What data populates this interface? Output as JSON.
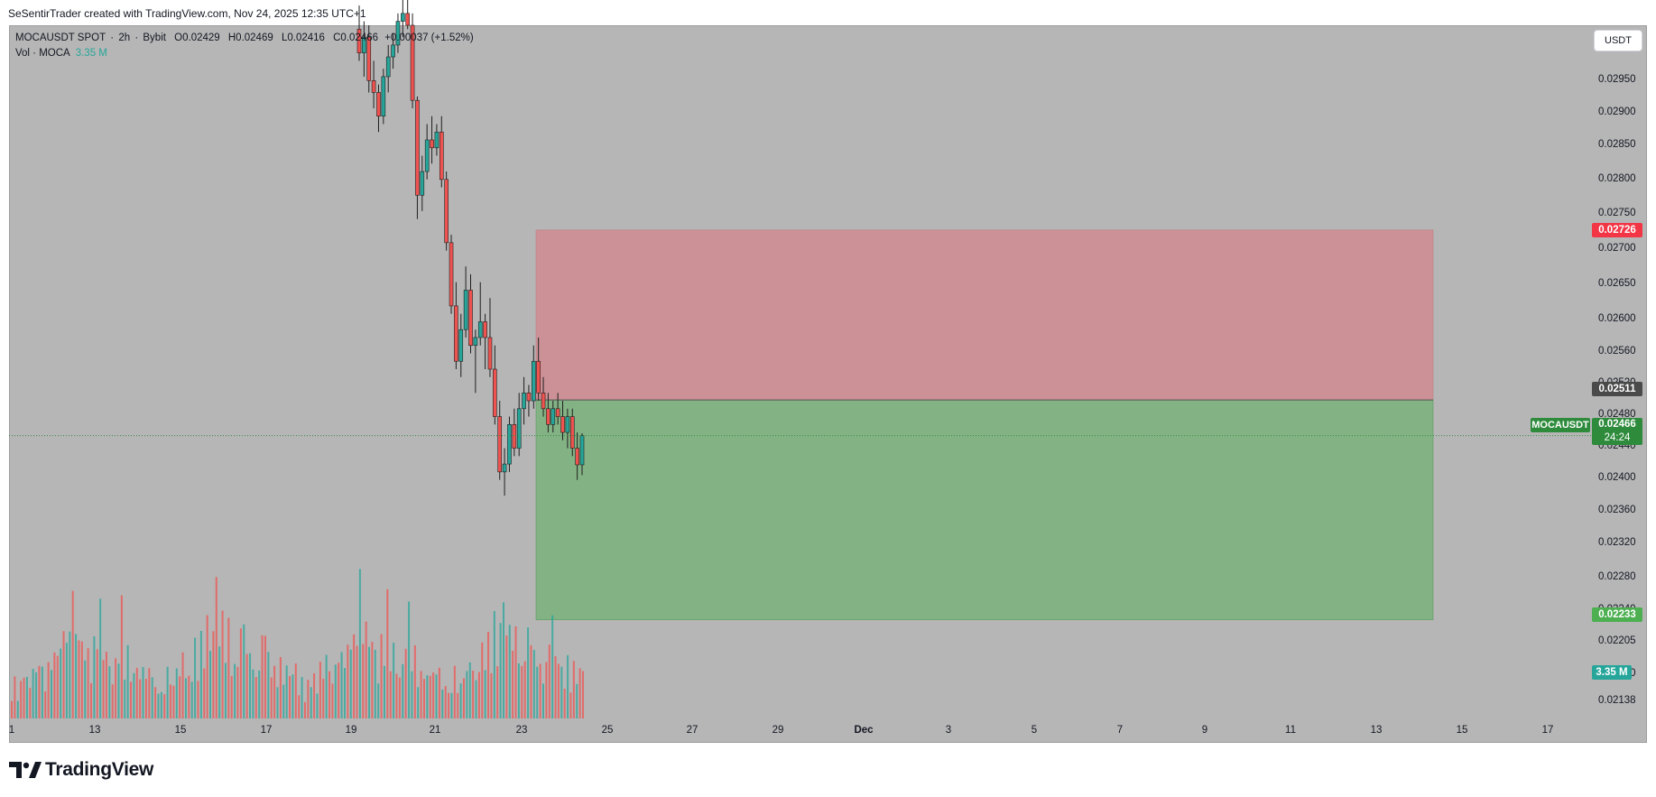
{
  "header": {
    "attribution": "SeSentirTrader created with TradingView.com, Nov 24, 2025 12:35 UTC+1"
  },
  "legend": {
    "symbol": "MOCAUSDT SPOT",
    "interval": "2h",
    "exchange": "Bybit",
    "open": "O0.02429",
    "high": "H0.02469",
    "low": "L0.02416",
    "close": "C0.02466",
    "change": "+0.00037 (+1.52%)",
    "vol_label": "Vol · MOCA",
    "vol_value": "3.35 M"
  },
  "currency_button": "USDT",
  "colors": {
    "background": "#b6b6b6",
    "up": "#26a69a",
    "down": "#ef5350",
    "stop_zone": "#d08b92",
    "target_zone": "#6db06f",
    "stop_tag": "#f23645",
    "target_tag": "#4caf50",
    "current_tag": "#2e8b3c",
    "volume_tag": "#26a69a"
  },
  "price_axis": [
    "0.02950",
    "0.02900",
    "0.02850",
    "0.02800",
    "0.02750",
    "0.02700",
    "0.02650",
    "0.02600",
    "0.02560",
    "0.02520",
    "0.02480",
    "0.02440",
    "0.02400",
    "0.02360",
    "0.02320",
    "0.02280",
    "0.02240",
    "0.02205",
    "0.02170",
    "0.02138"
  ],
  "time_axis": [
    "1",
    "13",
    "15",
    "17",
    "19",
    "21",
    "23",
    "25",
    "27",
    "29",
    "Dec",
    "3",
    "5",
    "7",
    "9",
    "11",
    "13",
    "15",
    "17"
  ],
  "tags": {
    "stop_price": "0.02726",
    "entry_price": "0.02511",
    "target_price": "0.02233",
    "symbol": "MOCAUSDT",
    "current_price": "0.02466",
    "countdown": "24:24",
    "volume": "3.35 M"
  },
  "brand": {
    "name": "TradingView",
    "logo_icon": "tradingview-logo-icon"
  },
  "chart_data": {
    "type": "candlestick",
    "price_range": [
      0.02115,
      0.02985
    ],
    "position": {
      "side": "long",
      "entry": 0.02511,
      "stop_loss": 0.02726,
      "take_profit": 0.02233
    },
    "candles": [
      [
        0.0298,
        0.0301,
        0.0294,
        0.0295
      ],
      [
        0.0295,
        0.0299,
        0.0292,
        0.0297
      ],
      [
        0.0297,
        0.02985,
        0.029,
        0.02915
      ],
      [
        0.02915,
        0.0294,
        0.0288,
        0.029
      ],
      [
        0.029,
        0.0291,
        0.0285,
        0.0287
      ],
      [
        0.0287,
        0.0293,
        0.0286,
        0.0292
      ],
      [
        0.0292,
        0.0296,
        0.029,
        0.02945
      ],
      [
        0.02945,
        0.02975,
        0.0293,
        0.0296
      ],
      [
        0.0296,
        0.03,
        0.0295,
        0.0299
      ],
      [
        0.0299,
        0.0302,
        0.0297,
        0.03
      ],
      [
        0.03,
        0.0304,
        0.0298,
        0.02985
      ],
      [
        0.02985,
        0.03,
        0.0288,
        0.0289
      ],
      [
        0.0289,
        0.02895,
        0.0274,
        0.0277
      ],
      [
        0.0277,
        0.0282,
        0.0275,
        0.028
      ],
      [
        0.028,
        0.0286,
        0.0279,
        0.0284
      ],
      [
        0.0284,
        0.0287,
        0.0281,
        0.0283
      ],
      [
        0.0283,
        0.0286,
        0.0282,
        0.0285
      ],
      [
        0.0285,
        0.0287,
        0.0278,
        0.0279
      ],
      [
        0.0279,
        0.028,
        0.027,
        0.0271
      ],
      [
        0.0271,
        0.0272,
        0.0262,
        0.0263
      ],
      [
        0.0263,
        0.0266,
        0.0255,
        0.0256
      ],
      [
        0.0256,
        0.0262,
        0.0254,
        0.026
      ],
      [
        0.026,
        0.0268,
        0.0259,
        0.0265
      ],
      [
        0.0265,
        0.0267,
        0.0257,
        0.0258
      ],
      [
        0.0258,
        0.026,
        0.0252,
        0.0259
      ],
      [
        0.0259,
        0.0266,
        0.0258,
        0.0261
      ],
      [
        0.0261,
        0.0262,
        0.0255,
        0.0259
      ],
      [
        0.0259,
        0.0264,
        0.0254,
        0.0255
      ],
      [
        0.0255,
        0.0258,
        0.0248,
        0.0249
      ],
      [
        0.0249,
        0.0251,
        0.0241,
        0.0242
      ],
      [
        0.0242,
        0.0245,
        0.0239,
        0.0243
      ],
      [
        0.0243,
        0.0249,
        0.0242,
        0.0248
      ],
      [
        0.0248,
        0.025,
        0.0244,
        0.0245
      ],
      [
        0.0245,
        0.0252,
        0.0244,
        0.025
      ],
      [
        0.025,
        0.0254,
        0.0248,
        0.0252
      ],
      [
        0.0252,
        0.0253,
        0.0249,
        0.0251
      ],
      [
        0.0251,
        0.0258,
        0.025,
        0.0256
      ],
      [
        0.0256,
        0.0259,
        0.0251,
        0.0252
      ],
      [
        0.0252,
        0.0254,
        0.0249,
        0.025
      ],
      [
        0.025,
        0.0252,
        0.0247,
        0.0248
      ],
      [
        0.0248,
        0.0251,
        0.0247,
        0.025
      ],
      [
        0.025,
        0.0252,
        0.0248,
        0.0249
      ],
      [
        0.0249,
        0.0251,
        0.0246,
        0.0247
      ],
      [
        0.0247,
        0.025,
        0.0245,
        0.0249
      ],
      [
        0.0249,
        0.025,
        0.0244,
        0.0245
      ],
      [
        0.0245,
        0.0247,
        0.0241,
        0.02429
      ],
      [
        0.02429,
        0.02469,
        0.02416,
        0.02466
      ]
    ],
    "volume_max_m": 10,
    "volumes_m": [
      1.8,
      2.4,
      1.5,
      2.2,
      3.0,
      2.6,
      2.0,
      3.4,
      2.8,
      4.1,
      3.0,
      2.5,
      3.2,
      4.6,
      3.8,
      5.0,
      4.2,
      6.1,
      4.9,
      5.5,
      9.2,
      5.0,
      6.5,
      4.4,
      5.8,
      4.0,
      3.1,
      4.8,
      5.2,
      7.4,
      3.9,
      4.5,
      3.2,
      2.6,
      3.5,
      4.9,
      7.0,
      3.8,
      4.2,
      3.0,
      2.7,
      3.6,
      2.5,
      3.3,
      2.8,
      3.0,
      3.35
    ]
  }
}
